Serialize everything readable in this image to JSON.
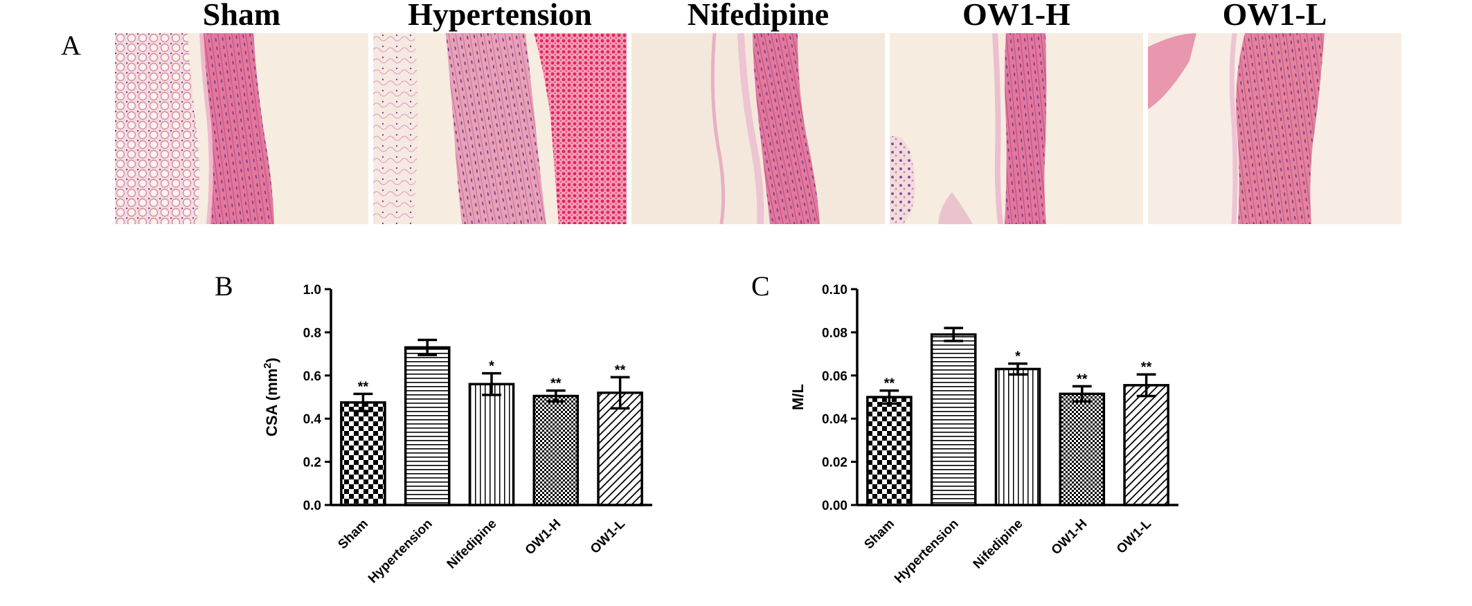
{
  "panelA": {
    "letter": "A",
    "columns": [
      "Sham",
      "Hypertension",
      "Nifedipine",
      "OW1-H",
      "OW1-L"
    ]
  },
  "chart_data": [
    {
      "panel_letter": "B",
      "type": "bar",
      "title": "",
      "xlabel": "",
      "ylabel": "CSA (mm",
      "ylabel_superscript": "2",
      "ylabel_suffix": ")",
      "categories": [
        "Sham",
        "Hypertension",
        "Nifedipine",
        "OW1-H",
        "OW1-L"
      ],
      "values": [
        0.475,
        0.73,
        0.56,
        0.505,
        0.52
      ],
      "errors": [
        0.04,
        0.035,
        0.05,
        0.025,
        0.072
      ],
      "significance": [
        "**",
        "",
        "*",
        "**",
        "**"
      ],
      "patterns": [
        "checker",
        "horizontal",
        "vertical",
        "fine-checker",
        "diagonal"
      ],
      "ylim": [
        0,
        1.0
      ],
      "yticks": [
        "0.0",
        "0.2",
        "0.4",
        "0.6",
        "0.8",
        "1.0"
      ],
      "grid": false,
      "legend": "none"
    },
    {
      "panel_letter": "C",
      "type": "bar",
      "title": "",
      "xlabel": "",
      "ylabel": "M/L",
      "ylabel_superscript": "",
      "ylabel_suffix": "",
      "categories": [
        "Sham",
        "Hypertension",
        "Nifedipine",
        "OW1-H",
        "OW1-L"
      ],
      "values": [
        0.05,
        0.079,
        0.063,
        0.0515,
        0.0555
      ],
      "errors": [
        0.003,
        0.003,
        0.0025,
        0.0035,
        0.005
      ],
      "significance": [
        "**",
        "",
        "*",
        "**",
        "**"
      ],
      "patterns": [
        "checker",
        "horizontal",
        "vertical",
        "fine-checker",
        "diagonal"
      ],
      "ylim": [
        0,
        0.1
      ],
      "yticks": [
        "0.00",
        "0.02",
        "0.04",
        "0.06",
        "0.08",
        "0.10"
      ],
      "grid": false,
      "legend": "none"
    }
  ]
}
